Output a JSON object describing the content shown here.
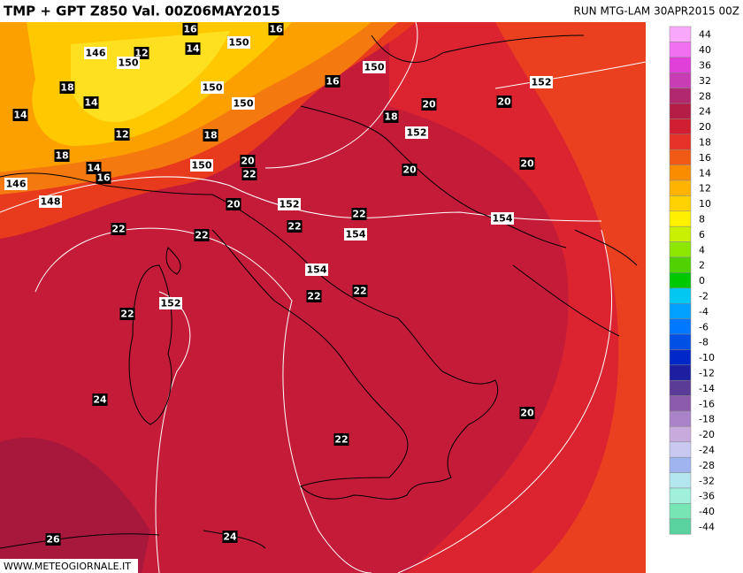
{
  "header": {
    "title": "TMP + GPT Z850 Val. 00Z06MAY2015",
    "run": "RUN MTG-LAM 30APR2015 00Z"
  },
  "footer": "WWW.METEOGIORNALE.IT",
  "legend": {
    "entries": [
      {
        "label": "44",
        "color": "#f8a8f8"
      },
      {
        "label": "40",
        "color": "#f070f0"
      },
      {
        "label": "36",
        "color": "#e040d8"
      },
      {
        "label": "32",
        "color": "#c83cb4"
      },
      {
        "label": "28",
        "color": "#b0286e"
      },
      {
        "label": "24",
        "color": "#b41e46"
      },
      {
        "label": "20",
        "color": "#d21e32"
      },
      {
        "label": "18",
        "color": "#e63228"
      },
      {
        "label": "16",
        "color": "#f05a14"
      },
      {
        "label": "14",
        "color": "#fa8c00"
      },
      {
        "label": "12",
        "color": "#ffb400"
      },
      {
        "label": "10",
        "color": "#ffd200"
      },
      {
        "label": "8",
        "color": "#fff000"
      },
      {
        "label": "6",
        "color": "#c8f000"
      },
      {
        "label": "4",
        "color": "#8ce600"
      },
      {
        "label": "2",
        "color": "#50d200"
      },
      {
        "label": "0",
        "color": "#00c800"
      },
      {
        "label": "-2",
        "color": "#00c8f0"
      },
      {
        "label": "-4",
        "color": "#00a0ff"
      },
      {
        "label": "-6",
        "color": "#0078ff"
      },
      {
        "label": "-8",
        "color": "#0050e6"
      },
      {
        "label": "-10",
        "color": "#0028c8"
      },
      {
        "label": "-12",
        "color": "#1e1ea0"
      },
      {
        "label": "-14",
        "color": "#5a3c96"
      },
      {
        "label": "-16",
        "color": "#8c5aaa"
      },
      {
        "label": "-18",
        "color": "#aa82c8"
      },
      {
        "label": "-20",
        "color": "#c8aadc"
      },
      {
        "label": "-24",
        "color": "#c8c8f0"
      },
      {
        "label": "-28",
        "color": "#a0b4f0"
      },
      {
        "label": "-32",
        "color": "#b4e6f0"
      },
      {
        "label": "-36",
        "color": "#a0f0dc"
      },
      {
        "label": "-40",
        "color": "#78e6b4"
      },
      {
        "label": "-44",
        "color": "#5ad2a0"
      }
    ]
  },
  "map_labels": [
    "16",
    "16",
    "150",
    "14",
    "146",
    "12",
    "150",
    "150",
    "18",
    "14",
    "150",
    "16",
    "152",
    "14",
    "150",
    "20",
    "20",
    "18",
    "12",
    "18",
    "152",
    "18",
    "20",
    "20",
    "14",
    "150",
    "16",
    "22",
    "20",
    "146",
    "148",
    "20",
    "152",
    "22",
    "154",
    "22",
    "22",
    "22",
    "154",
    "154",
    "22",
    "22",
    "152",
    "22",
    "24",
    "20",
    "22",
    "26",
    "24"
  ]
}
